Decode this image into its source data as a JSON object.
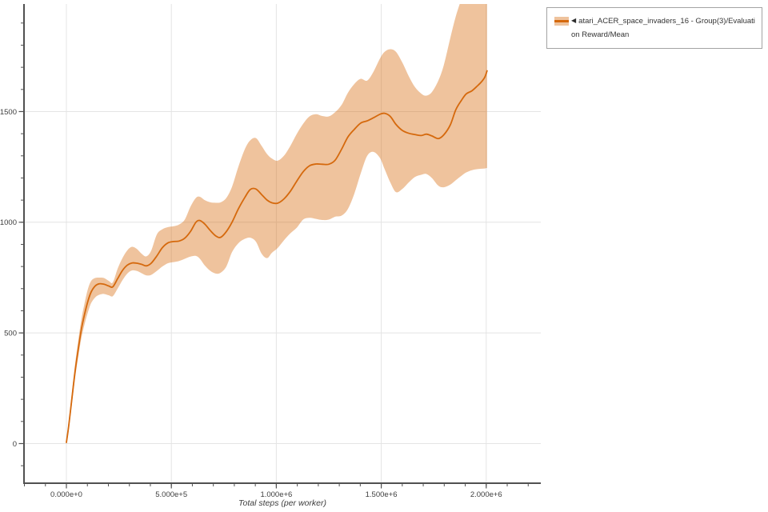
{
  "legend": {
    "marker": "◀",
    "line1": "atari_ACER_space_invaders_16 - Group(3)/Evaluati",
    "line2": "on Reward/Mean"
  },
  "colors": {
    "grid": "#e4e4e4",
    "axis": "#515151",
    "tick_label": "#3d3d3d",
    "legend_border": "#a3a3a3",
    "legend_text": "#333333"
  },
  "chart_data": {
    "type": "line",
    "title": "",
    "xlabel": "Total steps (per worker)",
    "ylabel": "",
    "grid": true,
    "legend_position": "top-right-outside",
    "xlim": [
      -202000,
      2260000
    ],
    "ylim": [
      -179,
      1986
    ],
    "x_major_ticks": [
      0,
      500000,
      1000000,
      1500000,
      2000000
    ],
    "x_major_tick_labels": [
      "0.000e+0",
      "5.000e+5",
      "1.000e+6",
      "1.500e+6",
      "2.000e+6"
    ],
    "y_major_ticks": [
      0,
      500,
      1000,
      1500
    ],
    "y_major_tick_labels": [
      "0",
      "500",
      "1000",
      "1500"
    ],
    "x_minor_tick_step": 100000,
    "y_minor_tick_step": 100,
    "series": [
      {
        "name": "atari_ACER_space_invaders_16 - Group(3)/Evaluation Reward/Mean",
        "line_color": "#d5690d",
        "band_color": "rgba(214,105,10,0.40)",
        "band_solid": "#efc39d",
        "x": [
          0,
          11000,
          27000,
          42000,
          57000,
          72000,
          88000,
          103000,
          118000,
          137000,
          156000,
          179000,
          202000,
          221000,
          244000,
          267000,
          290000,
          312000,
          335000,
          358000,
          381000,
          404000,
          431000,
          457000,
          484000,
          511000,
          537000,
          564000,
          591000,
          617000,
          636000,
          659000,
          686000,
          712000,
          735000,
          762000,
          789000,
          819000,
          850000,
          876000,
          903000,
          930000,
          956000,
          979000,
          1006000,
          1036000,
          1067000,
          1097000,
          1128000,
          1158000,
          1189000,
          1219000,
          1250000,
          1280000,
          1311000,
          1341000,
          1372000,
          1402000,
          1433000,
          1463000,
          1494000,
          1516000,
          1543000,
          1570000,
          1600000,
          1631000,
          1661000,
          1692000,
          1715000,
          1741000,
          1772000,
          1798000,
          1829000,
          1855000,
          1882000,
          1905000,
          1932000,
          1958000,
          1977000,
          1993000,
          2004000
        ],
        "mean": [
          5,
          80,
          210,
          330,
          430,
          520,
          590,
          645,
          685,
          712,
          722,
          720,
          712,
          708,
          745,
          782,
          806,
          816,
          815,
          810,
          803,
          815,
          848,
          885,
          907,
          913,
          915,
          928,
          958,
          1000,
          1008,
          992,
          962,
          938,
          932,
          958,
          1000,
          1060,
          1112,
          1148,
          1150,
          1125,
          1100,
          1088,
          1086,
          1105,
          1140,
          1185,
          1228,
          1255,
          1263,
          1262,
          1262,
          1280,
          1330,
          1385,
          1420,
          1448,
          1458,
          1472,
          1488,
          1492,
          1478,
          1442,
          1415,
          1402,
          1396,
          1392,
          1398,
          1390,
          1378,
          1395,
          1440,
          1508,
          1551,
          1580,
          1594,
          1616,
          1634,
          1655,
          1684
        ],
        "band_low": [
          0,
          60,
          185,
          300,
          395,
          480,
          545,
          595,
          635,
          660,
          672,
          676,
          670,
          666,
          700,
          738,
          768,
          782,
          780,
          770,
          760,
          762,
          780,
          800,
          815,
          820,
          825,
          835,
          845,
          848,
          835,
          805,
          780,
          768,
          772,
          800,
          865,
          905,
          925,
          930,
          912,
          858,
          838,
          862,
          883,
          918,
          950,
          975,
          1012,
          1020,
          1015,
          1010,
          1012,
          1025,
          1030,
          1060,
          1130,
          1220,
          1300,
          1318,
          1290,
          1240,
          1180,
          1136,
          1150,
          1180,
          1205,
          1215,
          1218,
          1200,
          1165,
          1158,
          1170,
          1190,
          1210,
          1225,
          1235,
          1240,
          1242,
          1243,
          1245
        ],
        "band_high": [
          15,
          100,
          240,
          365,
          470,
          565,
          640,
          700,
          735,
          748,
          750,
          748,
          735,
          728,
          790,
          838,
          873,
          889,
          880,
          858,
          846,
          872,
          945,
          968,
          978,
          982,
          990,
          1012,
          1070,
          1110,
          1115,
          1100,
          1090,
          1088,
          1090,
          1110,
          1160,
          1250,
          1330,
          1370,
          1380,
          1345,
          1308,
          1288,
          1278,
          1300,
          1345,
          1398,
          1445,
          1478,
          1488,
          1480,
          1478,
          1497,
          1530,
          1585,
          1625,
          1648,
          1640,
          1680,
          1740,
          1770,
          1782,
          1770,
          1722,
          1660,
          1610,
          1580,
          1572,
          1588,
          1640,
          1710,
          1833,
          1930,
          2010,
          2080,
          2120,
          2140,
          2145,
          2150,
          2150
        ]
      }
    ]
  }
}
